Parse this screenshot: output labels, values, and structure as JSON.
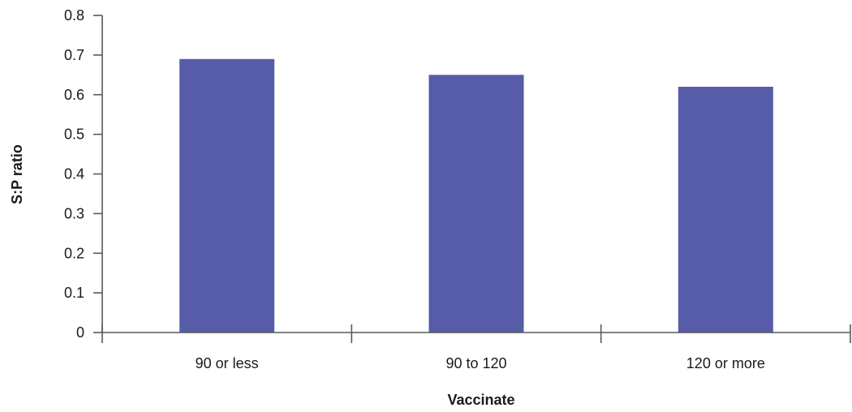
{
  "chart_data": {
    "type": "bar",
    "categories": [
      "90 or less",
      "90 to 120",
      "120 or more"
    ],
    "values": [
      0.69,
      0.65,
      0.62
    ],
    "xlabel": "Vaccinate",
    "ylabel": "S:P ratio",
    "ylim": [
      0,
      0.8
    ],
    "yticks": [
      "0",
      "0.1",
      "0.2",
      "0.3",
      "0.4",
      "0.5",
      "0.6",
      "0.7",
      "0.8"
    ],
    "grid": false,
    "bar_color": "#575ca8"
  }
}
